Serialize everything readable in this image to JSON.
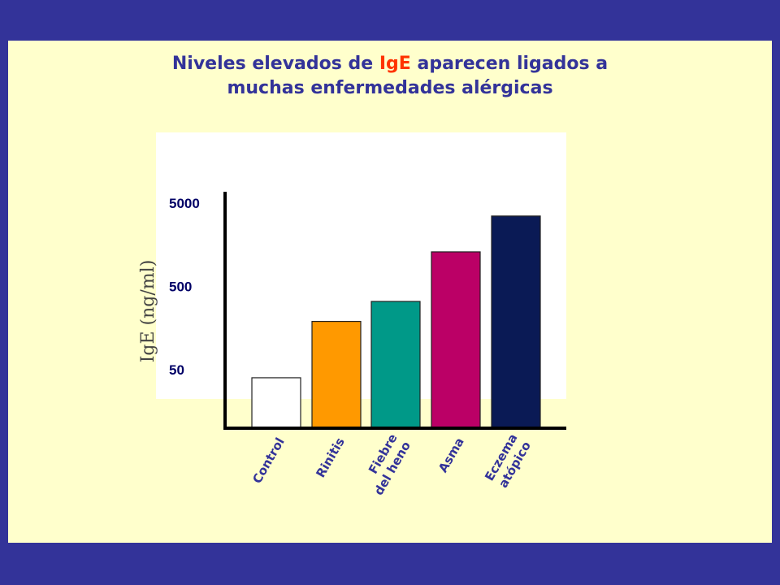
{
  "slide": {
    "title_line1_pre": "Niveles elevados de ",
    "title_line1_hl": "IgE",
    "title_line1_post": " aparecen ligados a",
    "title_line2": "muchas enfermedades alérgicas"
  },
  "colors": {
    "border": "#333399",
    "panel": "#ffffcc",
    "highlight": "#ff3300"
  },
  "chart_data": {
    "type": "bar",
    "title": "Niveles elevados de IgE aparecen ligados a muchas enfermedades alérgicas",
    "ylabel": "IgE (ng/ml)",
    "xlabel": "",
    "yscale": "log",
    "ylim": [
      10,
      5000
    ],
    "yticks": [
      {
        "value": 5000,
        "label": "5000"
      },
      {
        "value": 500,
        "label": "500"
      },
      {
        "value": 50,
        "label": "50"
      }
    ],
    "categories": [
      {
        "lines": [
          "Control"
        ]
      },
      {
        "lines": [
          "Rinitis"
        ]
      },
      {
        "lines": [
          "Fiebre",
          "del heno"
        ]
      },
      {
        "lines": [
          "Asma"
        ]
      },
      {
        "lines": [
          "Eczema",
          "atópico"
        ]
      }
    ],
    "values": [
      40,
      190,
      330,
      1300,
      3500
    ],
    "colors": [
      "#ffffff",
      "#ff9900",
      "#009988",
      "#bb0066",
      "#0a1a55"
    ],
    "grid": false,
    "legend": "none"
  }
}
